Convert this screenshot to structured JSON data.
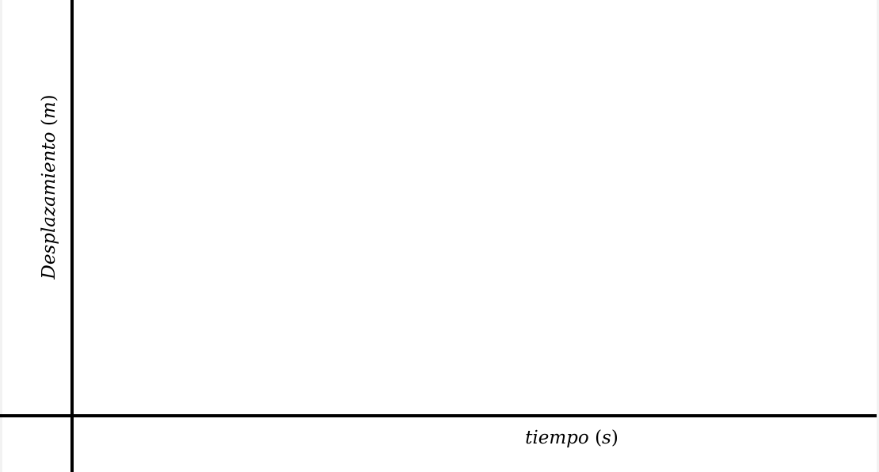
{
  "chart_data": {
    "type": "line",
    "title": "",
    "xlabel": "tiempo (s)",
    "ylabel": "Desplazamiento (m)",
    "xlabel_parts": {
      "word": "tiempo",
      "open": "(",
      "unit": "s",
      "close": ")"
    },
    "ylabel_parts": {
      "word": "Desplazamiento",
      "open": "(",
      "unit": "m",
      "close": ")"
    },
    "series": [],
    "grid": false,
    "legend": "none"
  }
}
